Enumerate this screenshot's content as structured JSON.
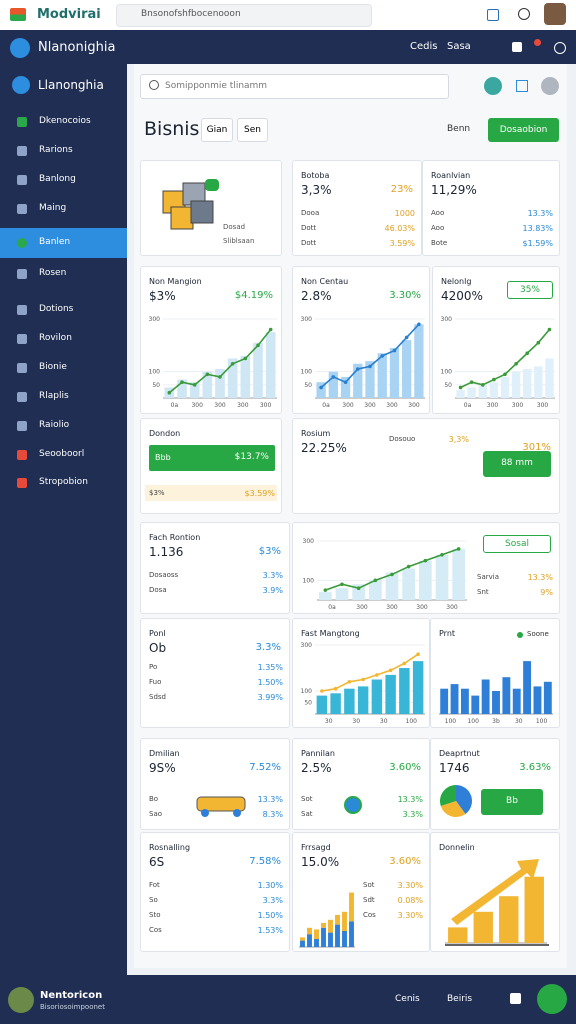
{
  "browser": {
    "title": "Modvirai",
    "url": "Bnsonofshfbocenooon"
  },
  "header": {
    "title": "Nlanonighia",
    "links": [
      "Cedis",
      "Sasa"
    ]
  },
  "sidebar": {
    "brand": "Llanonghia",
    "active_item": 4,
    "items": [
      "Dkenocoios",
      "Rarions",
      "Banlong",
      "Maing",
      "Banlen",
      "Rosen",
      "Dotions",
      "Rovilon",
      "Bionie",
      "Rlaplis",
      "Raiolio",
      "Seooboorl",
      "Stropobion"
    ]
  },
  "search": {
    "placeholder": "Somipponmie tlinamm"
  },
  "page": {
    "title": "Bisnis",
    "tabs": [
      "Gian",
      "Sen"
    ],
    "filter": "Benn",
    "action": "Dosaobion"
  },
  "cards": [
    {
      "title": "Dosad",
      "lines": [
        "Dosad",
        "Sliblsaan"
      ]
    },
    {
      "title": "Botoba",
      "value": "3,3%",
      "delta": "23%",
      "accent": "orange",
      "rows": [
        [
          "Dooa",
          "1000"
        ],
        [
          "Dott",
          "46.03%"
        ],
        [
          "Dott",
          "3.59%"
        ]
      ]
    },
    {
      "title": "Roanlvian",
      "value": "11,29%",
      "accent": "blue",
      "rows": [
        [
          "Aoo",
          "13.3%"
        ],
        [
          "Aoo",
          "13.83%"
        ],
        [
          "Bote",
          "$1.59%"
        ]
      ]
    },
    {
      "title": "Non Mangion",
      "value": "$3%",
      "delta": "$4.19%",
      "accent": "green",
      "chart": {
        "type": "combo",
        "bars": [
          40,
          70,
          60,
          100,
          110,
          150,
          160,
          210,
          250
        ],
        "values": [
          20,
          60,
          50,
          90,
          80,
          130,
          150,
          200,
          260
        ],
        "bar_color": "#cfe6f5",
        "line_color": "#3a9b3a",
        "ylim": [
          0,
          300
        ],
        "yticks": [
          50,
          100,
          300
        ],
        "xtick_labels": [
          "0a",
          "300",
          "300",
          "300",
          "300"
        ]
      }
    },
    {
      "title": "Non Centau",
      "value": "2.8%",
      "delta": "3.30%",
      "accent": "green",
      "chart": {
        "type": "combo",
        "bars": [
          60,
          100,
          80,
          130,
          140,
          170,
          190,
          220,
          280
        ],
        "values": [
          40,
          80,
          60,
          110,
          120,
          160,
          180,
          230,
          280
        ],
        "bar_color": "#a9d3f2",
        "line_color": "#2a7fd0",
        "ylim": [
          0,
          300
        ],
        "yticks": [
          50,
          100,
          300
        ],
        "xtick_labels": [
          "0a",
          "300",
          "300",
          "300",
          "300"
        ]
      }
    },
    {
      "title": "Nelonlg",
      "value": "4200%",
      "accent": "blue",
      "button": "35%",
      "chart": {
        "type": "combo",
        "bars": [
          30,
          40,
          50,
          60,
          80,
          100,
          110,
          120,
          150
        ],
        "values": [
          40,
          60,
          50,
          70,
          90,
          130,
          170,
          210,
          260
        ],
        "bar_color": "#dff0fa",
        "line_color": "#3a9b3a",
        "ylim": [
          0,
          300
        ],
        "yticks": [
          50,
          100,
          300
        ],
        "xtick_labels": [
          "0a",
          "300",
          "300",
          "300"
        ]
      }
    },
    {
      "title": "Dondon",
      "highlight": [
        "Bbb",
        "$13.7%"
      ],
      "accent": "orange",
      "rows": [
        [
          "$3%",
          "$3.59%"
        ]
      ]
    },
    {
      "title": "Rosium",
      "value": "22.25%",
      "delta": "301%",
      "accent": "orange",
      "button": "88 mm",
      "rows": [
        [
          "Dosouo",
          "3,3%"
        ]
      ]
    },
    {
      "title": "Fach Rontion",
      "value": "1.136",
      "delta": "$3%",
      "accent": "blue",
      "rows": [
        [
          "Dosaoss",
          "3.3%"
        ],
        [
          "Dosa",
          "3.9%"
        ]
      ]
    },
    {
      "title": "Sosal",
      "button": "Sosal",
      "accent": "orange",
      "rows": [
        [
          "Sarvia",
          "13.3%"
        ],
        [
          "Snt",
          "9%"
        ]
      ],
      "chart": {
        "type": "combo",
        "bars": [
          40,
          60,
          80,
          100,
          140,
          160,
          200,
          230,
          260
        ],
        "values": [
          50,
          80,
          60,
          100,
          130,
          170,
          200,
          230,
          260
        ],
        "bar_color": "#d5ecf6",
        "line_color": "#3a9b3a",
        "ylim": [
          0,
          300
        ],
        "yticks": [
          100,
          300
        ],
        "xtick_labels": [
          "0a",
          "300",
          "300",
          "300",
          "300"
        ]
      }
    },
    {
      "title": "Ponl",
      "value": "Ob",
      "delta": "3.3%",
      "accent": "blue",
      "rows": [
        [
          "Po",
          "1.35%"
        ],
        [
          "Fuo",
          "1.50%"
        ],
        [
          "Sdsd",
          "3.99%"
        ]
      ]
    },
    {
      "title": "Fast Mangtong",
      "chart": {
        "type": "combo",
        "bars": [
          80,
          90,
          110,
          120,
          150,
          170,
          200,
          230
        ],
        "values": [
          100,
          110,
          140,
          150,
          170,
          190,
          220,
          260
        ],
        "bar_color": "#38b6d8",
        "line_color": "#f2b632",
        "ylim": [
          0,
          300
        ],
        "yticks": [
          50,
          100,
          300
        ],
        "xtick_labels": [
          "30",
          "30",
          "30",
          "100"
        ]
      }
    },
    {
      "title": "Prnt",
      "legend": "Soone",
      "chart": {
        "type": "bar",
        "values": [
          110,
          130,
          110,
          80,
          150,
          100,
          160,
          110,
          230,
          120,
          140
        ],
        "color": "#2f7fd8",
        "ylim": [
          0,
          300
        ],
        "xtick_labels": [
          "100",
          "100",
          "3b",
          "30",
          "100"
        ]
      }
    },
    {
      "title": "Dmilian",
      "value": "9S%",
      "delta": "7.52%",
      "accent": "blue",
      "rows": [
        [
          "Bo",
          "13.3%"
        ],
        [
          "Sao",
          "8.3%"
        ]
      ]
    },
    {
      "title": "Pannilan",
      "value": "2.5%",
      "delta": "3.60%",
      "accent": "green",
      "rows": [
        [
          "Sot",
          "13.3%"
        ],
        [
          "Sat",
          "3.3%"
        ]
      ]
    },
    {
      "title": "Deaprtnut",
      "value": "1746",
      "delta": "3.63%",
      "accent": "green",
      "button": "Bb",
      "chart": {
        "type": "pie",
        "values": [
          40,
          30,
          30
        ],
        "colors": [
          "#2f7fd8",
          "#f2b632",
          "#27a844"
        ]
      }
    },
    {
      "title": "Rosnalling",
      "value": "6S",
      "delta": "7.58%",
      "accent": "blue",
      "rows": [
        [
          "Fot",
          "1.30%"
        ],
        [
          "So",
          "3.3%"
        ],
        [
          "Sto",
          "1.50%"
        ],
        [
          "Cos",
          "1.53%"
        ]
      ]
    },
    {
      "title": "Frrsagd",
      "value": "15.0%",
      "delta": "3.60%",
      "accent": "orange",
      "rows": [
        [
          "Sot",
          "3.30%"
        ],
        [
          "Sdt",
          "0.08%"
        ],
        [
          "Cos",
          "3.30%"
        ]
      ],
      "chart": {
        "type": "stacked",
        "series": [
          {
            "color": "#2f7fd8",
            "values": [
              20,
              40,
              25,
              60,
              45,
              70,
              50,
              80
            ]
          },
          {
            "color": "#f2b632",
            "values": [
              10,
              20,
              30,
              15,
              40,
              30,
              60,
              90
            ]
          }
        ],
        "ylim": [
          0,
          200
        ]
      }
    },
    {
      "title": "Donnelin",
      "chart": {
        "type": "bar",
        "values": [
          20,
          40,
          60,
          85
        ],
        "color": "#f2b632",
        "ylim": [
          0,
          100
        ]
      }
    }
  ],
  "footer": {
    "name": "Nentoricon",
    "sub": "Bisoriosoimpoonet",
    "links": [
      "Cenis",
      "Beiris"
    ]
  }
}
